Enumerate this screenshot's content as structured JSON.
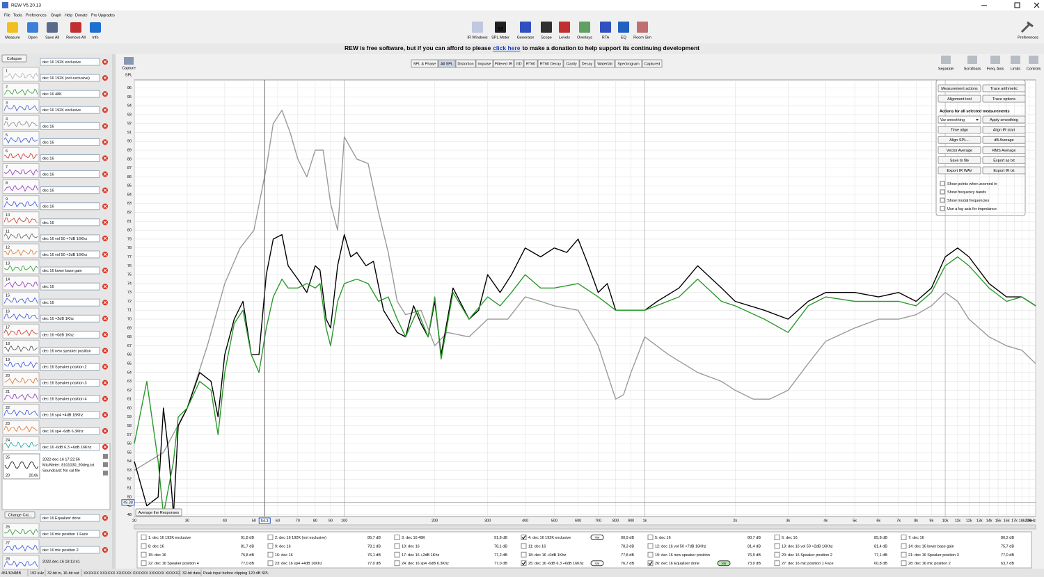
{
  "window": {
    "title": "REW V5.20.13"
  },
  "menu": [
    "File",
    "Tools",
    "Preferences",
    "Graph",
    "Help",
    "Donate",
    "Pro Upgrades"
  ],
  "toolbar_left": [
    "Measure",
    "Open",
    "Save All",
    "Remove All",
    "Info"
  ],
  "toolbar_center": [
    "IR Windows",
    "SPL Meter",
    "Generator",
    "Scope",
    "Levels",
    "Overlays",
    "RTA",
    "EQ",
    "Room Sim"
  ],
  "spl_meter_reading": "83",
  "toolbar_right": [
    "Preferences"
  ],
  "banner": {
    "before": "REW is free software, but if you can afford to please",
    "link": "click here",
    "after": "to make a donation to help support its continuing development"
  },
  "collapse": "Collapse",
  "measurements": [
    {
      "number": "1",
      "name": "dec 16 192K exclusive",
      "legend": "1: dec 16 192K exclusive",
      "value": "91,8 dB",
      "color": "#b0b0b0",
      "checked": false
    },
    {
      "number": "2",
      "name": "dec 16 192K (not exclusive)",
      "legend": "2: dec 16 192K (not exclusive)",
      "value": "85,7 dB",
      "color": "#2a9a2a",
      "checked": false
    },
    {
      "number": "3",
      "name": "dec 16 48K",
      "legend": "3: dec 16 48K",
      "value": "91,8 dB",
      "color": "#3c5ad0",
      "checked": false
    },
    {
      "number": "4",
      "name": "dec 16 192K exclusive",
      "legend": "4: dec 16 192K exclusive",
      "value": "90,9 dB",
      "color": "#888888",
      "checked": true,
      "smoothing": "Var"
    },
    {
      "number": "5",
      "name": "dec 16",
      "legend": "5: dec 16",
      "value": "80,7 dB",
      "color": "#3050e0",
      "checked": false
    },
    {
      "number": "6",
      "name": "dec 16",
      "legend": "6: dec 16",
      "value": "85,8 dB",
      "color": "#d03020",
      "checked": false
    },
    {
      "number": "7",
      "name": "dec 16",
      "legend": "7: dec 16",
      "value": "86,2 dB",
      "color": "#9030c0",
      "checked": false
    },
    {
      "number": "8",
      "name": "dec 16",
      "legend": "8: dec 16",
      "value": "81,7 dB",
      "color": "#9030c0",
      "checked": false
    },
    {
      "number": "9",
      "name": "dec 16",
      "legend": "9: dec 16",
      "value": "78,1 dB",
      "color": "#3050e0",
      "checked": false
    },
    {
      "number": "10",
      "name": "dec 16",
      "legend": "10: dec 16",
      "value": "78,1 dB",
      "color": "#d03020",
      "checked": false
    },
    {
      "number": "11",
      "name": "dec 16",
      "legend": "11: dec 16",
      "value": "78,3 dB",
      "color": "#606060",
      "checked": false
    },
    {
      "number": "12",
      "name": "dec 16 vol 50 +7dB 16Khz",
      "legend": "12: dec 16 vol 50 +7dB 16Khz",
      "value": "81,4 dB",
      "color": "#e07020",
      "checked": false
    },
    {
      "number": "13",
      "name": "dec 16 vol 50 +2dB 16Khz",
      "legend": "13: dec 16 vol 50 +2dB 16Khz",
      "value": "81,4 dB",
      "color": "#2a9a2a",
      "checked": false
    },
    {
      "number": "14",
      "name": "dec 16 lower base gain",
      "legend": "14: dec 16 lower base gain",
      "value": "75,7 dB",
      "color": "#9030c0",
      "checked": false
    },
    {
      "number": "15",
      "name": "dec 16",
      "legend": "15: dec 16",
      "value": "75,8 dB",
      "color": "#3050e0",
      "checked": false
    },
    {
      "number": "16",
      "name": "dec 16",
      "legend": "16: dec 16",
      "value": "76,1 dB",
      "color": "#3050e0",
      "checked": false
    },
    {
      "number": "17",
      "name": "dec 16 +2dB 1Khz",
      "legend": "17: dec 16 +2dB 1Khz",
      "value": "77,2 dB",
      "color": "#d03020",
      "checked": false
    },
    {
      "number": "18",
      "name": "dec 16 +0dB 1Khz",
      "legend": "18: dec 16 +0dB 1Khz",
      "value": "77,8 dB",
      "color": "#505050",
      "checked": false
    },
    {
      "number": "19",
      "name": "dec 16 new speaker position",
      "legend": "19: dec 16 new speaker position",
      "value": "76,9 dB",
      "color": "#3050e0",
      "checked": false
    },
    {
      "number": "20",
      "name": "dec 16 Speaker position 2",
      "legend": "20: dec 16 Speaker position 2",
      "value": "77,1 dB",
      "color": "#e07020",
      "checked": false
    },
    {
      "number": "21",
      "name": "dec 16 Speaker position 3",
      "legend": "21: dec 16 Speaker position 3",
      "value": "77,0 dB",
      "color": "#9030c0",
      "checked": false
    },
    {
      "number": "22",
      "name": "dec 16 Speaker position 4",
      "legend": "22: dec 16 Speaker position 4",
      "value": "77,0 dB",
      "color": "#3050e0",
      "checked": false
    },
    {
      "number": "23",
      "name": "dec 16 sp4 +4dB 16Khz",
      "legend": "23: dec 16 sp4 +4dB 16Khz",
      "value": "77,0 dB",
      "color": "#e07020",
      "checked": false
    },
    {
      "number": "24",
      "name": "dec 16 sp4 -6dB 6.3Khz",
      "legend": "24: dec 16 sp4 -6dB 6.3Khz",
      "value": "77,0 dB",
      "color": "#20a0a0",
      "checked": false
    },
    {
      "number": "25",
      "name": "dec 16 -6dB 6.3 +6dB 16Khz",
      "legend": "25: dec 16 -6dB 6.3 +6dB 16Khz",
      "value": "76,7 dB",
      "color": "#000000",
      "checked": true,
      "smoothing": "Var"
    },
    {
      "number": "26",
      "name": "dec 16 Equalizer done",
      "legend": "26: dec 16 Equalizer done",
      "value": "73,0 dB",
      "color": "#2a9a2a",
      "checked": true,
      "smoothing": "Var"
    },
    {
      "number": "27",
      "name": "dec 16 mic position 1 Face",
      "legend": "27: dec 16 mic position 1 Face",
      "value": "60,8 dB",
      "color": "#3050e0",
      "checked": false
    },
    {
      "number": "28",
      "name": "dec 16 mic position 2",
      "legend": "28: dec 16 mic position 2",
      "value": "63,7 dB",
      "color": "#3050e0",
      "checked": false
    }
  ],
  "selected_info": {
    "date": "2022-dec-16 17:22:56",
    "mic": "Mic/Meter: 8101030_90deg.txt",
    "soundcard": "Soundcard: No cal file",
    "thumb_min": "20",
    "thumb_max": "20.0k"
  },
  "change_cal": "Change Cal...",
  "last_info_date": "2022-dec-16 18:13:41",
  "capture": [
    "Capture",
    "SPL"
  ],
  "tabs": [
    "SPL & Phase",
    "All SPL",
    "Distortion",
    "Impulse",
    "Filtered IR",
    "GD",
    "RT60",
    "RT60 Decay",
    "Clarity",
    "Decay",
    "Waterfall",
    "Spectrogram",
    "Captured"
  ],
  "active_tab": 1,
  "graph_tools": [
    "Separate",
    "Scrollbars",
    "Freq. Axis",
    "Limits",
    "Controls"
  ],
  "graph": {
    "xscale": "log",
    "xlim": [
      20,
      20000
    ],
    "ylim": [
      47.8,
      96.9
    ],
    "grid": true,
    "yticks": [
      48,
      49,
      50,
      51,
      52,
      53,
      54,
      55,
      56,
      57,
      58,
      59,
      60,
      61,
      62,
      63,
      64,
      65,
      66,
      67,
      68,
      69,
      70,
      71,
      72,
      73,
      74,
      75,
      76,
      77,
      78,
      79,
      80,
      81,
      82,
      83,
      84,
      85,
      86,
      87,
      88,
      89,
      90,
      91,
      92,
      93,
      94,
      95,
      96
    ],
    "xticks": [
      20,
      30,
      40,
      50,
      60,
      70,
      80,
      90,
      100,
      200,
      300,
      400,
      500,
      600,
      700,
      800,
      900,
      {
        "value": 1000,
        "label": "1k"
      },
      {
        "value": 2000,
        "label": "2k"
      },
      {
        "value": 3000,
        "label": "3k"
      },
      {
        "value": 4000,
        "label": "4k"
      },
      {
        "value": 5000,
        "label": "5k"
      },
      {
        "value": 6000,
        "label": "6k"
      },
      {
        "value": 7000,
        "label": "7k"
      },
      {
        "value": 8000,
        "label": "8k"
      },
      {
        "value": 9000,
        "label": "9k"
      },
      {
        "value": 10000,
        "label": "10k"
      },
      {
        "value": 11000,
        "label": "11k"
      },
      {
        "value": 12000,
        "label": "12k"
      },
      {
        "value": 13000,
        "label": "13k"
      },
      {
        "value": 14000,
        "label": "14k"
      },
      {
        "value": 15000,
        "label": "15k"
      },
      {
        "value": 16000,
        "label": "16k"
      },
      {
        "value": 17000,
        "label": "17k"
      },
      {
        "value": 18000,
        "label": "18k"
      },
      {
        "value": 19000,
        "label": "19k"
      },
      {
        "value": 20000,
        "label": "20kHz"
      }
    ],
    "cursor": {
      "x": 54.3,
      "y": 49.38
    },
    "series": [
      {
        "color": "#9a9a9a",
        "x": [
          20,
          25,
          30,
          35,
          40,
          45,
          50,
          55,
          58,
          62,
          66,
          70,
          75,
          80,
          85,
          90,
          95,
          100,
          110,
          120,
          130,
          140,
          150,
          160,
          180,
          200,
          220,
          260,
          300,
          350,
          400,
          450,
          500,
          600,
          700,
          800,
          850,
          900,
          1000,
          1200,
          1500,
          1800,
          2000,
          2300,
          2600,
          3000,
          3500,
          4000,
          5000,
          6000,
          7000,
          8000,
          9000,
          10000,
          11000,
          12000,
          14000,
          16000,
          18000,
          20000
        ],
        "values": [
          53,
          55,
          60,
          67,
          74,
          78,
          80,
          87,
          92,
          93.5,
          91,
          88,
          86,
          89,
          89,
          83,
          80,
          90.5,
          88,
          87.5,
          82,
          77.5,
          72,
          70.5,
          71,
          67,
          68.5,
          68,
          70,
          70,
          72.5,
          72,
          71.5,
          71,
          67,
          61,
          61.5,
          64,
          68,
          66,
          64,
          63,
          62,
          61,
          61,
          62,
          65,
          67.5,
          69,
          70,
          70,
          70.5,
          71.5,
          73,
          72,
          70,
          68,
          67,
          66.5,
          65
        ]
      },
      {
        "color": "#000000",
        "x": [
          20,
          22,
          24,
          25,
          26,
          27,
          28,
          30,
          33,
          36,
          38,
          40,
          43,
          46,
          49,
          52,
          55,
          58,
          62,
          65,
          70,
          75,
          80,
          83,
          87,
          90,
          95,
          100,
          105,
          110,
          118,
          125,
          135,
          150,
          160,
          170,
          180,
          190,
          200,
          210,
          230,
          260,
          280,
          300,
          330,
          360,
          400,
          450,
          500,
          550,
          600,
          650,
          700,
          750,
          800,
          900,
          1000,
          1100,
          1300,
          1500,
          1800,
          2000,
          2500,
          3000,
          3500,
          4000,
          5000,
          6000,
          7000,
          8000,
          9000,
          10000,
          11000,
          12000,
          14000,
          16000,
          18000,
          20000
        ],
        "values": [
          54,
          49,
          50,
          60,
          55,
          48,
          58,
          60,
          64,
          63,
          59,
          66,
          70,
          72,
          66,
          66,
          75,
          79,
          79.5,
          76,
          74.5,
          73,
          76,
          75.5,
          70,
          69,
          76,
          79.5,
          77,
          77.5,
          76,
          76.5,
          71,
          68.5,
          68,
          71.5,
          69.5,
          68,
          72,
          66,
          73.5,
          70,
          71,
          75,
          73,
          75,
          78,
          77,
          78,
          77.5,
          79,
          76,
          73,
          74,
          71,
          71,
          71,
          72,
          73.5,
          76,
          73.5,
          72,
          71,
          70,
          72,
          73,
          73,
          72.5,
          73,
          72,
          73.5,
          77,
          78,
          77,
          74,
          72.5,
          72.5,
          71.5
        ]
      },
      {
        "color": "#2a9a2a",
        "x": [
          20,
          22,
          24,
          25,
          27,
          28,
          30,
          33,
          36,
          38,
          40,
          43,
          46,
          49,
          52,
          55,
          58,
          62,
          65,
          70,
          75,
          80,
          83,
          87,
          90,
          95,
          100,
          110,
          120,
          130,
          140,
          150,
          160,
          175,
          190,
          200,
          210,
          230,
          260,
          300,
          330,
          360,
          400,
          450,
          500,
          600,
          700,
          800,
          900,
          1000,
          1300,
          1500,
          1800,
          2000,
          2500,
          3000,
          3500,
          4000,
          5000,
          6000,
          7000,
          8000,
          9000,
          10000,
          11000,
          12000,
          14000,
          16000,
          18000,
          20000
        ],
        "values": [
          56,
          63,
          54,
          48,
          54,
          59,
          60,
          63,
          62,
          57,
          64,
          69.5,
          71,
          66,
          64,
          69,
          72.5,
          74.5,
          73.5,
          73.5,
          74,
          73.5,
          74,
          69,
          67,
          72,
          74,
          74.5,
          74,
          72,
          72.5,
          70,
          68,
          71,
          68,
          72.5,
          65.5,
          73,
          70,
          72.5,
          71.5,
          73,
          75,
          73.5,
          73.5,
          74,
          72.5,
          71,
          71,
          71,
          72.5,
          74.5,
          72,
          71.5,
          70,
          68.5,
          71.5,
          72.5,
          72,
          72,
          72,
          71.5,
          73,
          76,
          77,
          76,
          73.5,
          72,
          72.5,
          71.5
        ]
      }
    ]
  },
  "average_button": "Average the Responses",
  "actions_panel": {
    "top_buttons": [
      "Measurement actions",
      "Trace arithmetic",
      "Alignment tool",
      "Trace options"
    ],
    "heading": "Actions for all selected measurements",
    "smoothing_choice": "Var smoothing",
    "buttons": [
      "Apply smoothing",
      "Time align",
      "Align IR start",
      "Align SPL...",
      "dB Average",
      "Vector Average",
      "RMS Average",
      "Save to file",
      "Export as txt",
      "Export IR WAV",
      "Export IR txt"
    ],
    "checkboxes": [
      "Show points when zoomed in",
      "Show frequency bands",
      "Show modal frequencies",
      "Use a log axis for impedance"
    ]
  },
  "status": {
    "memory": "451/634MB",
    "rate": "192 kHz",
    "bits": "32-bit in, 16-bit out",
    "meter": "XXXXXX XXXXXX XXXXXX XXXXXX XXXXXX XXXXXX",
    "data": "32-bit data",
    "peak": "Peak input before clipping 120 dB SPL"
  }
}
